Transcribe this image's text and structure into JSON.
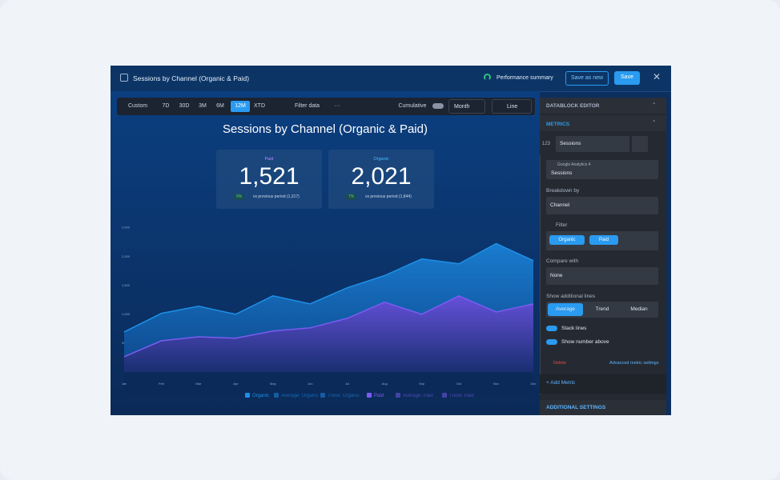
{
  "header": {
    "title": "Sessions by Channel (Organic & Paid)",
    "performance": "Performance summary",
    "save_as_new": "Save as new",
    "save": "Save"
  },
  "toolbar": {
    "ranges": [
      "Custom",
      "7D",
      "30D",
      "3M",
      "6M",
      "12M",
      "XTD"
    ],
    "filter": "Filter data",
    "cumulative": "Cumulative",
    "interval": "Month",
    "chart_type": "Line"
  },
  "kpis": [
    {
      "label": "Paid",
      "value": "1,521",
      "change": "9%",
      "compare": "vs previous period (1,317)"
    },
    {
      "label": "Organic",
      "value": "2,021",
      "change": "7%",
      "compare": "vs previous period (1,844)"
    }
  ],
  "chart_data": {
    "type": "area",
    "title": "Sessions by Channel (Organic & Paid)",
    "stacked": true,
    "grid": false,
    "categories": [
      "Jan",
      "Feb",
      "Mar",
      "Apr",
      "May",
      "Jun",
      "Jul",
      "Aug",
      "Sep",
      "Oct",
      "Nov",
      "Dec"
    ],
    "series": [
      {
        "name": "Organic",
        "color": "#1e90e8",
        "values": [
          430,
          475,
          530,
          415,
          610,
          415,
          530,
          460,
          960,
          555,
          1185,
          750
        ]
      },
      {
        "name": "Paid",
        "color": "#7b5cf0",
        "values": [
          264,
          540,
          610,
          585,
          710,
          765,
          930,
          1210,
          1000,
          1320,
          1040,
          1180
        ]
      }
    ],
    "extra_legend": [
      [
        "Average: Organic",
        "Trend: Organic"
      ],
      [
        "Average: Paid",
        "Trend: Paid"
      ]
    ],
    "ylim": [
      0,
      2800
    ],
    "yticks": [
      500,
      {
        "value": 1000,
        "label": "1,000"
      },
      {
        "value": 1500,
        "label": "1,500"
      },
      {
        "value": 2000,
        "label": "2,000"
      },
      {
        "value": 2500,
        "label": "2,500"
      }
    ]
  },
  "editor": {
    "title": "DATABLOCK EDITOR",
    "metrics": "METRICS",
    "metric_icon": "123",
    "metric_name": "Sessions",
    "source": "Google Analytics 4",
    "source_metric": "Sessions",
    "breakdown_label": "Breakdown by",
    "breakdown": "Channel",
    "filter_label": "Filter",
    "filters": [
      "Organic",
      "Paid"
    ],
    "compare_label": "Compare with",
    "compare": "None",
    "lines_label": "Show additional lines",
    "lines": [
      "Average",
      "Trend",
      "Median"
    ],
    "stack": "Stack lines",
    "show_number": "Show number above",
    "delete": "Delete",
    "advanced": "Advanced metric settings",
    "add_metric": "+ Add Metric",
    "additional": "ADDITIONAL SETTINGS"
  }
}
